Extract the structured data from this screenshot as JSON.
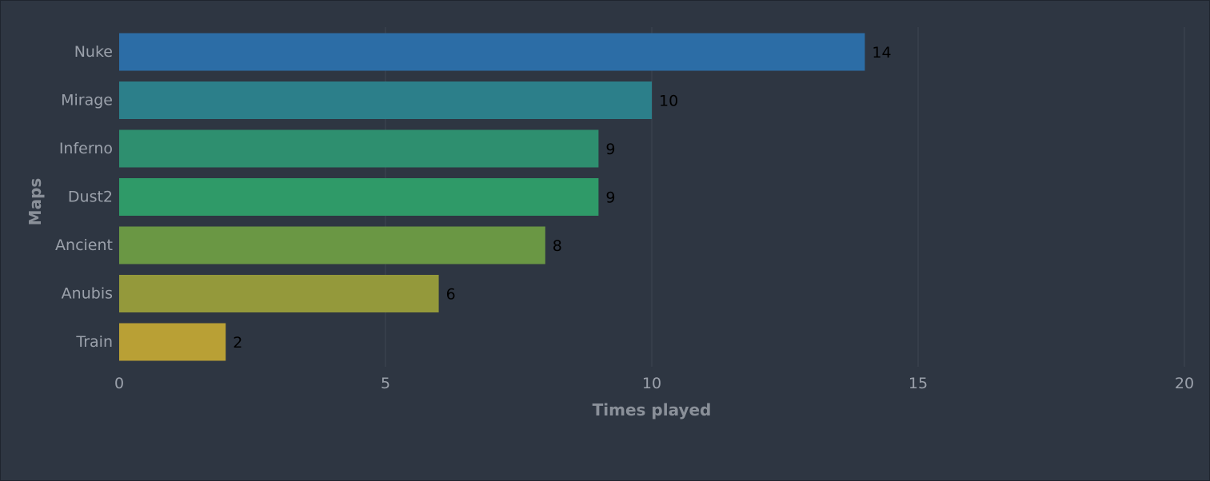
{
  "chart_data": {
    "type": "bar",
    "orientation": "horizontal",
    "categories": [
      "Nuke",
      "Mirage",
      "Inferno",
      "Dust2",
      "Ancient",
      "Anubis",
      "Train"
    ],
    "values": [
      14,
      10,
      9,
      9,
      8,
      6,
      2
    ],
    "bar_colors": [
      "#2c6da6",
      "#2c7f8a",
      "#2e8f6f",
      "#2f9a68",
      "#6a9744",
      "#94993b",
      "#b9a035"
    ],
    "xlabel": "Times played",
    "ylabel": "Maps",
    "xlim": [
      0,
      20
    ],
    "xticks": [
      0,
      5,
      10,
      15,
      20
    ],
    "grid": "vertical",
    "legend": "none",
    "value_labels": "outside-end"
  },
  "colors": {
    "background": "#2e3642",
    "gridline": "#3d4553",
    "tick_text": "#9ba1ab",
    "axis_title": "#8a9099",
    "value_text": "#000000"
  }
}
